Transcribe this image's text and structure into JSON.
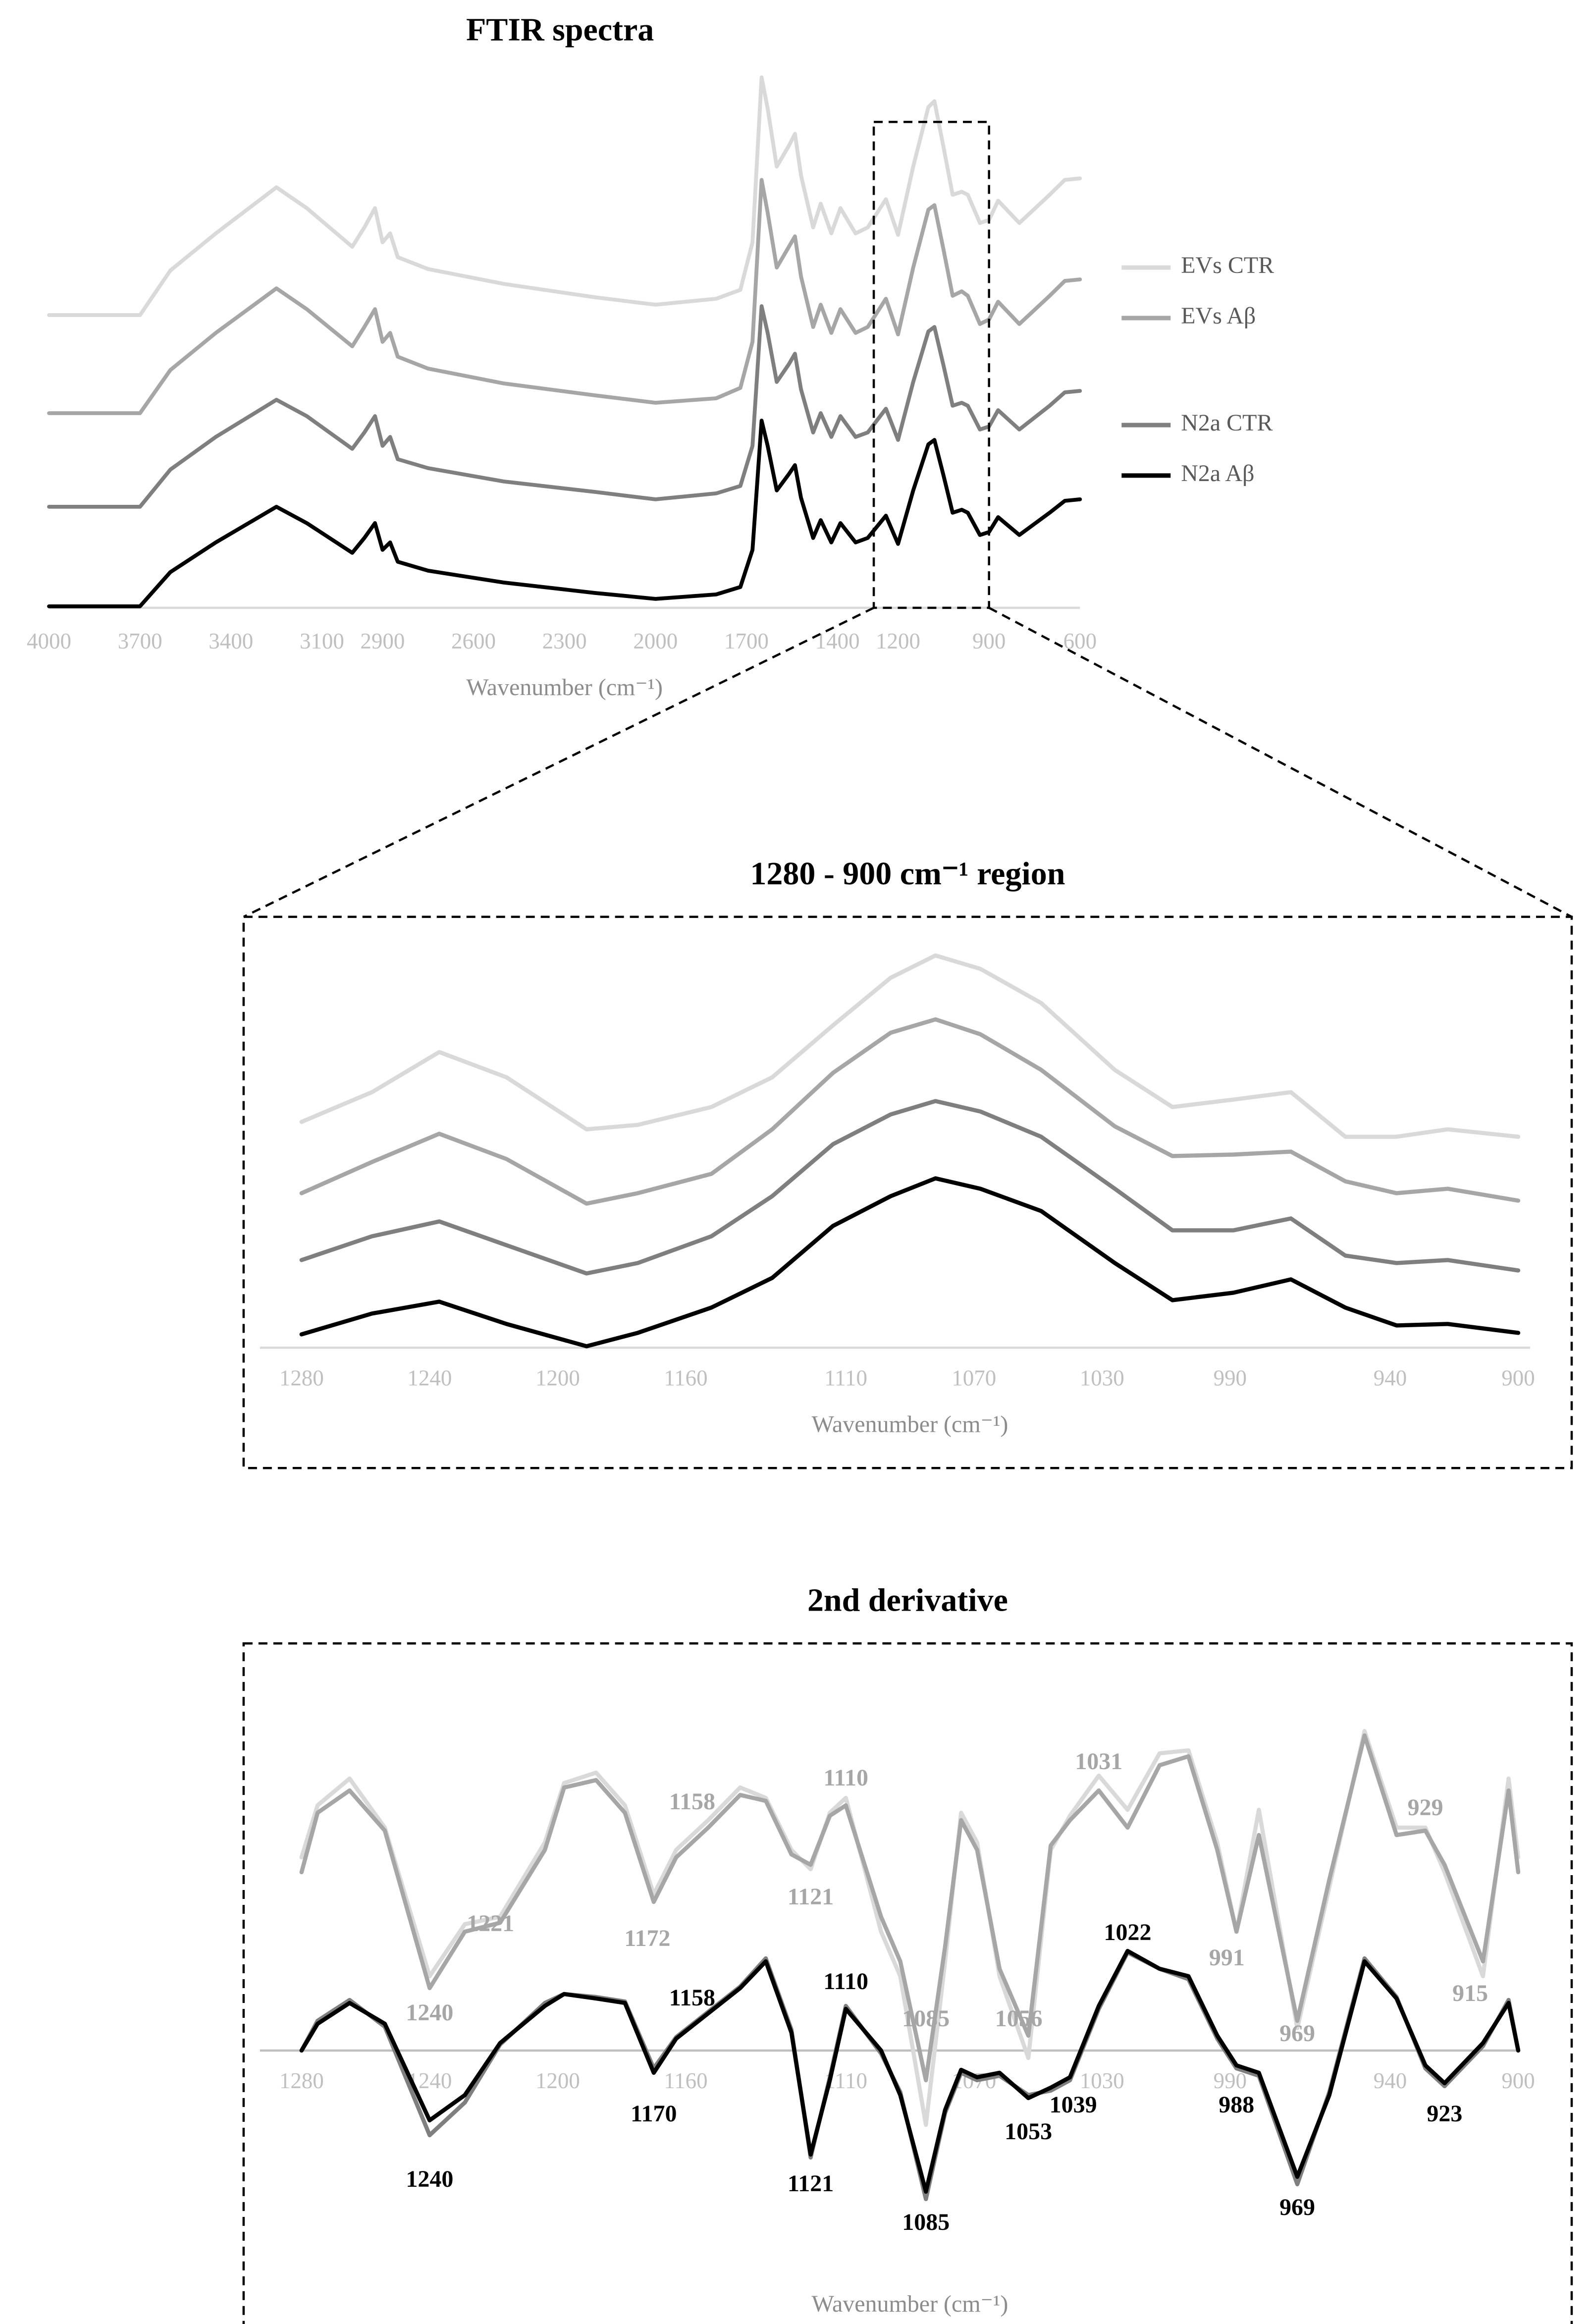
{
  "chart_data": [
    {
      "type": "line",
      "title": "FTIR spectra",
      "x_label": "Wavenumber (cm⁻¹)",
      "x": [
        4000,
        3700,
        3600,
        3450,
        3250,
        3150,
        3000,
        2960,
        2925,
        2900,
        2875,
        2850,
        2750,
        2500,
        2200,
        2000,
        1800,
        1720,
        1680,
        1650,
        1630,
        1600,
        1560,
        1540,
        1520,
        1480,
        1455,
        1420,
        1390,
        1340,
        1300,
        1240,
        1200,
        1150,
        1100,
        1080,
        1050,
        1020,
        990,
        970,
        930,
        900,
        870,
        800,
        700,
        650,
        600
      ],
      "xlim": [
        4000,
        600
      ],
      "xticks": [
        4000,
        3700,
        3400,
        3100,
        2900,
        2600,
        2300,
        2000,
        1700,
        1400,
        1200,
        900,
        600
      ],
      "ylim": [
        0,
        360
      ],
      "legend": "right",
      "series": [
        {
          "name": "EVs CTR",
          "color": "#d9d9d9",
          "values": [
            197,
            197,
            227,
            252,
            283,
            269,
            243,
            256,
            269,
            246,
            252,
            236,
            228,
            218,
            209,
            204,
            208,
            214,
            246,
            357,
            336,
            297,
            311,
            319,
            291,
            256,
            272,
            252,
            269,
            252,
            256,
            275,
            251,
            297,
            337,
            341,
            310,
            278,
            280,
            278,
            259,
            261,
            274,
            259,
            278,
            288,
            289
          ]
        },
        {
          "name": "EVs Aβ",
          "color": "#a6a6a6",
          "values": [
            131,
            131,
            160,
            185,
            215,
            201,
            176,
            189,
            201,
            179,
            185,
            169,
            161,
            151,
            143,
            138,
            141,
            148,
            179,
            288,
            266,
            229,
            243,
            250,
            223,
            189,
            204,
            185,
            201,
            185,
            189,
            208,
            184,
            229,
            268,
            271,
            241,
            210,
            213,
            210,
            191,
            194,
            206,
            191,
            210,
            220,
            221
          ]
        },
        {
          "name": "N2a CTR",
          "color": "#7f7f7f",
          "values": [
            68,
            68,
            93,
            115,
            140,
            129,
            107,
            118,
            129,
            109,
            115,
            100,
            94,
            85,
            78,
            73,
            77,
            82,
            109,
            203,
            185,
            152,
            164,
            171,
            147,
            118,
            131,
            115,
            129,
            115,
            118,
            134,
            113,
            152,
            186,
            189,
            163,
            136,
            138,
            136,
            120,
            122,
            133,
            120,
            136,
            145,
            146
          ]
        },
        {
          "name": "N2a Aβ",
          "color": "#000000",
          "values": [
            1,
            1,
            24,
            44,
            68,
            57,
            37,
            47,
            57,
            39,
            44,
            31,
            25,
            17,
            10,
            6,
            9,
            14,
            39,
            126,
            109,
            79,
            90,
            96,
            74,
            47,
            59,
            44,
            57,
            44,
            47,
            62,
            43,
            79,
            110,
            113,
            89,
            64,
            66,
            64,
            49,
            51,
            61,
            49,
            64,
            72,
            73
          ]
        }
      ]
    },
    {
      "type": "line",
      "title": "1280 - 900 cm⁻¹ region",
      "x_label": "Wavenumber (cm⁻¹)",
      "x": [
        1280,
        1258,
        1237,
        1216,
        1191,
        1175,
        1152,
        1133,
        1114,
        1096,
        1082,
        1068,
        1049,
        1026,
        1008,
        989,
        971,
        954,
        938,
        922,
        900
      ],
      "xlim": [
        1280,
        900
      ],
      "xticks": [
        1280,
        1240,
        1200,
        1160,
        1110,
        1070,
        1030,
        990,
        940,
        900
      ],
      "ylim": [
        0,
        290
      ],
      "series": [
        {
          "color": "#d9d9d9",
          "values": [
            152,
            172,
            199,
            182,
            147,
            150,
            162,
            182,
            217,
            249,
            264,
            255,
            232,
            187,
            162,
            167,
            172,
            142,
            142,
            147,
            142
          ]
        },
        {
          "color": "#a6a6a6",
          "values": [
            104,
            125,
            144,
            127,
            97,
            104,
            117,
            147,
            185,
            212,
            221,
            211,
            187,
            149,
            129,
            130,
            132,
            112,
            104,
            107,
            99
          ]
        },
        {
          "color": "#7f7f7f",
          "values": [
            59,
            75,
            85,
            69,
            50,
            57,
            75,
            102,
            137,
            157,
            166,
            159,
            142,
            107,
            79,
            79,
            87,
            62,
            57,
            59,
            52
          ]
        },
        {
          "color": "#000000",
          "values": [
            9,
            23,
            31,
            16,
            1,
            10,
            27,
            47,
            82,
            102,
            114,
            107,
            92,
            57,
            32,
            37,
            46,
            27,
            15,
            16,
            10
          ]
        }
      ]
    },
    {
      "type": "line",
      "title": "2nd derivative",
      "x_label": "Wavenumber (cm⁻¹)",
      "x": [
        1280,
        1275,
        1265,
        1254,
        1240,
        1229,
        1218,
        1204,
        1198,
        1188,
        1179,
        1170,
        1163,
        1153,
        1143,
        1135,
        1127,
        1121,
        1115,
        1110,
        1099,
        1093,
        1085,
        1079,
        1074,
        1069,
        1062,
        1053,
        1046,
        1040,
        1031,
        1022,
        1012,
        1003,
        994,
        988,
        981,
        969,
        959,
        948,
        938,
        929,
        923,
        911,
        903,
        900
      ],
      "xlim": [
        1280,
        900
      ],
      "xticks": [
        1280,
        1240,
        1200,
        1160,
        1110,
        1070,
        1030,
        990,
        940,
        900
      ],
      "ylim": [
        -200,
        275
      ],
      "series": [
        {
          "color": "#d9d9d9",
          "values": [
            130,
            165,
            183,
            150,
            50,
            85,
            90,
            140,
            180,
            187,
            165,
            105,
            135,
            155,
            177,
            170,
            135,
            122,
            160,
            170,
            80,
            50,
            -50,
            60,
            160,
            140,
            50,
            -5,
            135,
            158,
            185,
            162,
            200,
            202,
            140,
            80,
            162,
            15,
            110,
            215,
            150,
            150,
            120,
            50,
            183,
            130
          ]
        },
        {
          "color": "#a6a6a6",
          "values": [
            120,
            160,
            175,
            148,
            42,
            80,
            86,
            135,
            177,
            182,
            160,
            100,
            130,
            150,
            172,
            168,
            132,
            125,
            158,
            165,
            90,
            60,
            -20,
            70,
            155,
            135,
            55,
            10,
            138,
            155,
            175,
            150,
            192,
            198,
            135,
            80,
            145,
            20,
            115,
            212,
            145,
            148,
            125,
            60,
            175,
            120
          ]
        },
        {
          "color": "#7f7f7f",
          "values": [
            0,
            20,
            34,
            16,
            -57,
            -35,
            4,
            32,
            38,
            36,
            33,
            -12,
            9,
            26,
            43,
            62,
            14,
            -72,
            -18,
            30,
            -2,
            -28,
            -100,
            -42,
            -15,
            -20,
            -17,
            -30,
            -27,
            -20,
            28,
            66,
            55,
            48,
            8,
            -12,
            -17,
            -90,
            -28,
            62,
            36,
            -12,
            -24,
            3,
            34,
            0
          ]
        },
        {
          "color": "#000000",
          "values": [
            0,
            18,
            32,
            18,
            -47,
            -30,
            5,
            30,
            38,
            35,
            32,
            -15,
            8,
            25,
            42,
            60,
            12,
            -70,
            -20,
            28,
            0,
            -30,
            -95,
            -40,
            -13,
            -18,
            -15,
            -32,
            -25,
            -18,
            30,
            67,
            55,
            50,
            10,
            -10,
            -15,
            -85,
            -30,
            60,
            35,
            -10,
            -22,
            5,
            32,
            0
          ]
        }
      ],
      "annotations": [
        {
          "text": "1240",
          "x": 1240,
          "y": 24,
          "color": "#a6a6a6"
        },
        {
          "text": "1221",
          "x": 1221,
          "y": 84,
          "color": "#a6a6a6"
        },
        {
          "text": "1172",
          "x": 1172,
          "y": 74,
          "color": "#a6a6a6"
        },
        {
          "text": "1158",
          "x": 1158,
          "y": 166,
          "color": "#a6a6a6"
        },
        {
          "text": "1121",
          "x": 1121,
          "y": 102,
          "color": "#a6a6a6"
        },
        {
          "text": "1110",
          "x": 1110,
          "y": 182,
          "color": "#a6a6a6"
        },
        {
          "text": "1085",
          "x": 1085,
          "y": 20,
          "color": "#a6a6a6"
        },
        {
          "text": "1056",
          "x": 1056,
          "y": 20,
          "color": "#a6a6a6"
        },
        {
          "text": "1031",
          "x": 1031,
          "y": 193,
          "color": "#a6a6a6"
        },
        {
          "text": "991",
          "x": 991,
          "y": 61,
          "color": "#a6a6a6"
        },
        {
          "text": "969",
          "x": 969,
          "y": 10,
          "color": "#a6a6a6"
        },
        {
          "text": "929",
          "x": 929,
          "y": 162,
          "color": "#a6a6a6"
        },
        {
          "text": "915",
          "x": 915,
          "y": 37,
          "color": "#a6a6a6"
        },
        {
          "text": "1240",
          "x": 1240,
          "y": -88,
          "color": "#000000"
        },
        {
          "text": "1170",
          "x": 1170,
          "y": -44,
          "color": "#000000"
        },
        {
          "text": "1158",
          "x": 1158,
          "y": 34,
          "color": "#000000"
        },
        {
          "text": "1121",
          "x": 1121,
          "y": -91,
          "color": "#000000"
        },
        {
          "text": "1110",
          "x": 1110,
          "y": 45,
          "color": "#000000"
        },
        {
          "text": "1085",
          "x": 1085,
          "y": -117,
          "color": "#000000"
        },
        {
          "text": "1053",
          "x": 1053,
          "y": -56,
          "color": "#000000"
        },
        {
          "text": "1039",
          "x": 1039,
          "y": -38,
          "color": "#000000"
        },
        {
          "text": "1022",
          "x": 1022,
          "y": 78,
          "color": "#000000"
        },
        {
          "text": "988",
          "x": 988,
          "y": -38,
          "color": "#000000"
        },
        {
          "text": "969",
          "x": 969,
          "y": -107,
          "color": "#000000"
        },
        {
          "text": "923",
          "x": 923,
          "y": -44,
          "color": "#000000"
        }
      ]
    }
  ]
}
